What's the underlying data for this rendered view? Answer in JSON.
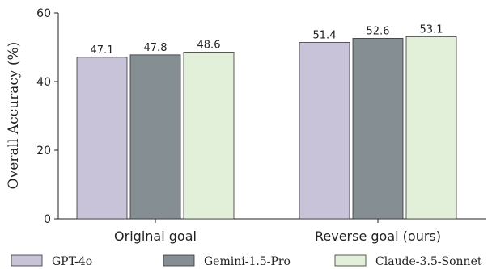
{
  "chart_data": {
    "type": "bar",
    "title": "",
    "xlabel": "",
    "ylabel": "Overall Accuracy (%)",
    "ylim": [
      0,
      60
    ],
    "yticks": [
      0,
      20,
      40,
      60
    ],
    "grid": false,
    "legend_position": "bottom",
    "categories": [
      "Original goal",
      "Reverse goal (ours)"
    ],
    "series": [
      {
        "name": "GPT-4o",
        "values": [
          47.1,
          51.4
        ],
        "labels": [
          "47.1",
          "51.4"
        ],
        "color": "#c9c3d9"
      },
      {
        "name": "Gemini-1.5-Pro",
        "values": [
          47.8,
          52.6
        ],
        "labels": [
          "47.8",
          "52.6"
        ],
        "color": "#858e93"
      },
      {
        "name": "Claude-3.5-Sonnet",
        "values": [
          48.6,
          53.1
        ],
        "labels": [
          "48.6",
          "53.1"
        ],
        "color": "#e2efd9"
      }
    ]
  }
}
